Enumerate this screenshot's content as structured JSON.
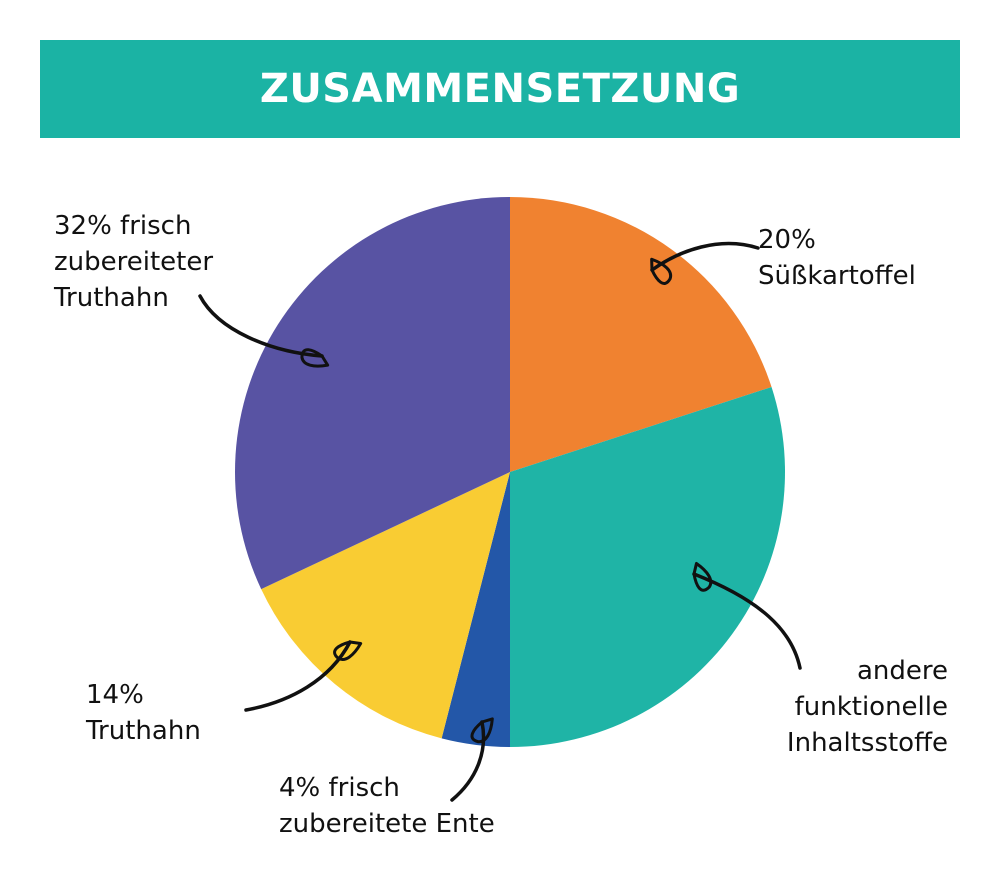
{
  "header": {
    "title": "ZUSAMMENSETZUNG",
    "background_color": "#1bb3a4"
  },
  "chart_data": {
    "type": "pie",
    "title": "ZUSAMMENSETZUNG",
    "start": "12 o'clock",
    "direction": "clockwise",
    "slices": [
      {
        "label_lines": [
          "20%",
          "Süßkartoffel"
        ],
        "value": 20,
        "color": "#f08230"
      },
      {
        "label_lines": [
          "andere",
          "funktionelle",
          "Inhaltsstoffe"
        ],
        "value": 30,
        "color": "#1fb4a6"
      },
      {
        "label_lines": [
          "4% frisch",
          "zubereitete Ente"
        ],
        "value": 4,
        "color": "#2357a8"
      },
      {
        "label_lines": [
          "14%",
          "Truthahn"
        ],
        "value": 14,
        "color": "#f9cc33"
      },
      {
        "label_lines": [
          "32% frisch",
          "zubereiteter",
          "Truthahn"
        ],
        "value": 32,
        "color": "#5853a3"
      }
    ]
  }
}
